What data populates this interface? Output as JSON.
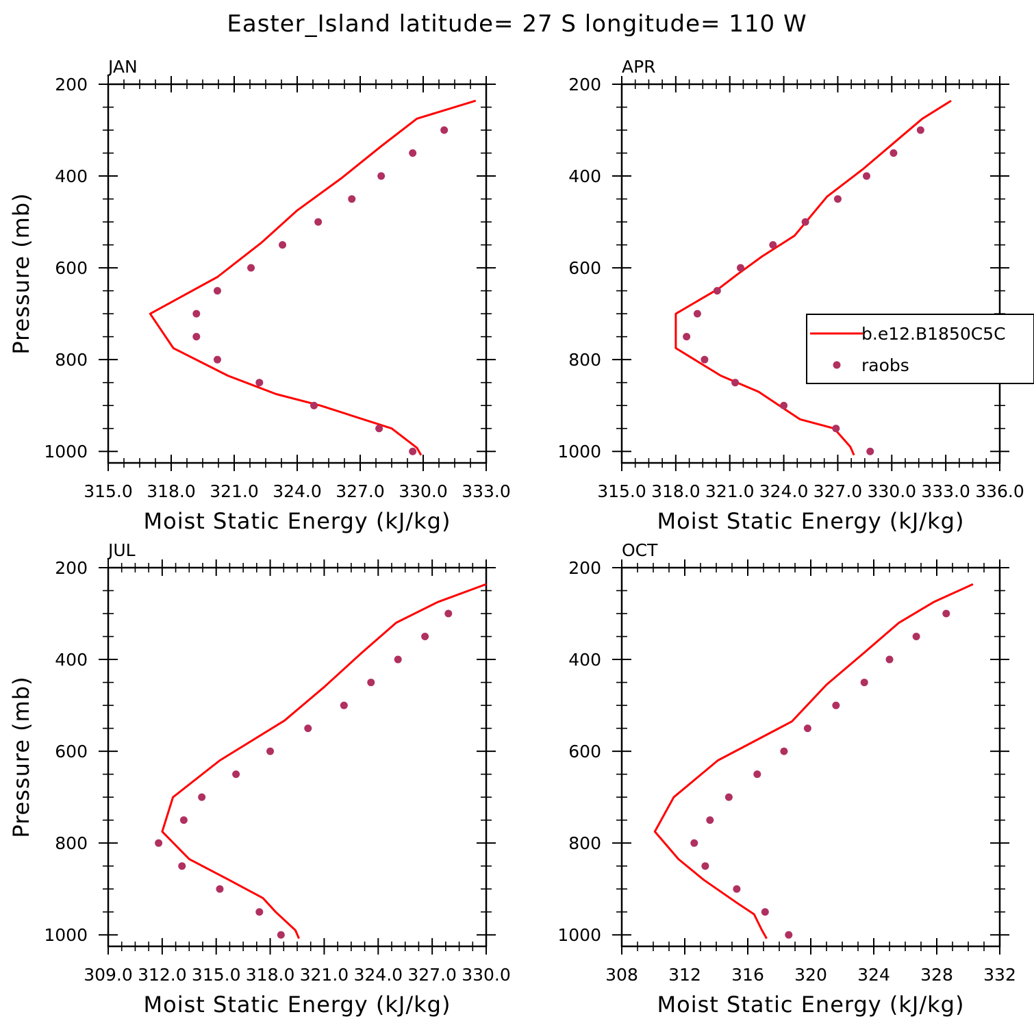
{
  "figure": {
    "title": "Easter_Island  latitude= 27 S longitude= 110 W"
  },
  "colors": {
    "model": "#ff0000",
    "obs": "#b03060"
  },
  "legend": {
    "model_label": "b.e12.B1850C5C",
    "obs_label": "raobs"
  },
  "chart_data": [
    {
      "type": "line",
      "month": "JAN",
      "xlabel": "Moist Static Energy (kJ/kg)",
      "ylabel": "Pressure (mb)",
      "xlim": [
        315,
        333
      ],
      "ylim": [
        200,
        1025
      ],
      "xticks": [
        "315.0",
        "318.0",
        "321.0",
        "324.0",
        "327.0",
        "330.0",
        "333.0"
      ],
      "yticks": [
        "200",
        "400",
        "600",
        "800",
        "1000"
      ],
      "series": [
        {
          "name": "b.e12.B1850C5C",
          "kind": "line",
          "x": [
            332.5,
            329.7,
            328.0,
            326.1,
            324.0,
            322.3,
            320.2,
            317.0,
            318.1,
            320.7,
            323.0,
            325.1,
            328.5,
            329.7,
            329.9
          ],
          "y": [
            236,
            275,
            335,
            405,
            475,
            545,
            620,
            700,
            775,
            835,
            875,
            900,
            950,
            992,
            1008
          ]
        },
        {
          "name": "raobs",
          "kind": "points",
          "x": [
            331.0,
            329.5,
            328.0,
            326.6,
            325.0,
            323.3,
            321.8,
            320.2,
            319.2,
            319.2,
            320.2,
            322.2,
            324.8,
            327.9,
            329.5
          ],
          "y": [
            300,
            350,
            400,
            450,
            500,
            550,
            600,
            650,
            700,
            750,
            800,
            850,
            900,
            950,
            1000
          ]
        }
      ]
    },
    {
      "type": "line",
      "month": "APR",
      "xlabel": "Moist Static Energy (kJ/kg)",
      "ylabel": "",
      "xlim": [
        315,
        336
      ],
      "ylim": [
        200,
        1025
      ],
      "xticks": [
        "315.0",
        "318.0",
        "321.0",
        "324.0",
        "327.0",
        "330.0",
        "333.0",
        "336.0"
      ],
      "yticks": [
        "200",
        "400",
        "600",
        "800",
        "1000"
      ],
      "series": [
        {
          "name": "b.e12.B1850C5C",
          "kind": "line",
          "x": [
            333.3,
            331.7,
            330.2,
            328.4,
            326.4,
            324.6,
            322.8,
            321.4,
            320.4,
            318.0,
            318.0,
            320.5,
            322.6,
            324.9,
            326.8,
            327.7,
            327.9
          ],
          "y": [
            236,
            275,
            325,
            385,
            445,
            530,
            575,
            615,
            645,
            700,
            775,
            835,
            870,
            930,
            950,
            990,
            1008
          ]
        },
        {
          "name": "raobs",
          "kind": "points",
          "x": [
            331.6,
            330.1,
            328.6,
            327.0,
            325.2,
            323.4,
            321.6,
            320.3,
            319.2,
            318.6,
            319.6,
            321.3,
            324.0,
            326.9,
            328.8
          ],
          "y": [
            300,
            350,
            400,
            450,
            500,
            550,
            600,
            650,
            700,
            750,
            800,
            850,
            900,
            950,
            1000
          ]
        }
      ]
    },
    {
      "type": "line",
      "month": "JUL",
      "xlabel": "Moist Static Energy (kJ/kg)",
      "ylabel": "Pressure (mb)",
      "xlim": [
        309,
        330
      ],
      "ylim": [
        200,
        1025
      ],
      "xticks": [
        "309.0",
        "312.0",
        "315.0",
        "318.0",
        "321.0",
        "324.0",
        "327.0",
        "330.0"
      ],
      "yticks": [
        "200",
        "400",
        "600",
        "800",
        "1000"
      ],
      "series": [
        {
          "name": "b.e12.B1850C5C",
          "kind": "line",
          "x": [
            330.0,
            327.3,
            325.0,
            323.1,
            321.0,
            318.8,
            315.2,
            312.6,
            312.0,
            313.5,
            315.7,
            317.6,
            318.3,
            319.4,
            319.6
          ],
          "y": [
            236,
            275,
            320,
            385,
            460,
            533,
            620,
            700,
            775,
            835,
            880,
            920,
            950,
            990,
            1008
          ]
        },
        {
          "name": "raobs",
          "kind": "points",
          "x": [
            327.9,
            326.6,
            325.1,
            323.6,
            322.1,
            320.1,
            318.0,
            316.1,
            314.2,
            313.2,
            311.8,
            313.1,
            315.2,
            317.4,
            318.6
          ],
          "y": [
            300,
            350,
            400,
            450,
            500,
            550,
            600,
            650,
            700,
            750,
            800,
            850,
            900,
            950,
            1000
          ]
        }
      ]
    },
    {
      "type": "line",
      "month": "OCT",
      "xlabel": "Moist Static Energy (kJ/kg)",
      "ylabel": "",
      "xlim": [
        308,
        332
      ],
      "ylim": [
        200,
        1025
      ],
      "xticks": [
        "308",
        "312",
        "316",
        "320",
        "324",
        "328",
        "332"
      ],
      "yticks": [
        "200",
        "400",
        "600",
        "800",
        "1000"
      ],
      "series": [
        {
          "name": "b.e12.B1850C5C",
          "kind": "line",
          "x": [
            330.3,
            327.8,
            325.6,
            323.4,
            321.0,
            318.8,
            314.1,
            311.3,
            310.1,
            311.6,
            313.2,
            315.3,
            316.4,
            316.9,
            317.2
          ],
          "y": [
            236,
            275,
            320,
            385,
            455,
            535,
            620,
            700,
            775,
            835,
            880,
            930,
            955,
            990,
            1008
          ]
        },
        {
          "name": "raobs",
          "kind": "points",
          "x": [
            328.6,
            326.7,
            325.0,
            323.4,
            321.6,
            319.8,
            318.3,
            316.6,
            314.8,
            313.6,
            312.6,
            313.3,
            315.3,
            317.1,
            318.6
          ],
          "y": [
            300,
            350,
            400,
            450,
            500,
            550,
            600,
            650,
            700,
            750,
            800,
            850,
            900,
            950,
            1000
          ]
        }
      ]
    }
  ]
}
